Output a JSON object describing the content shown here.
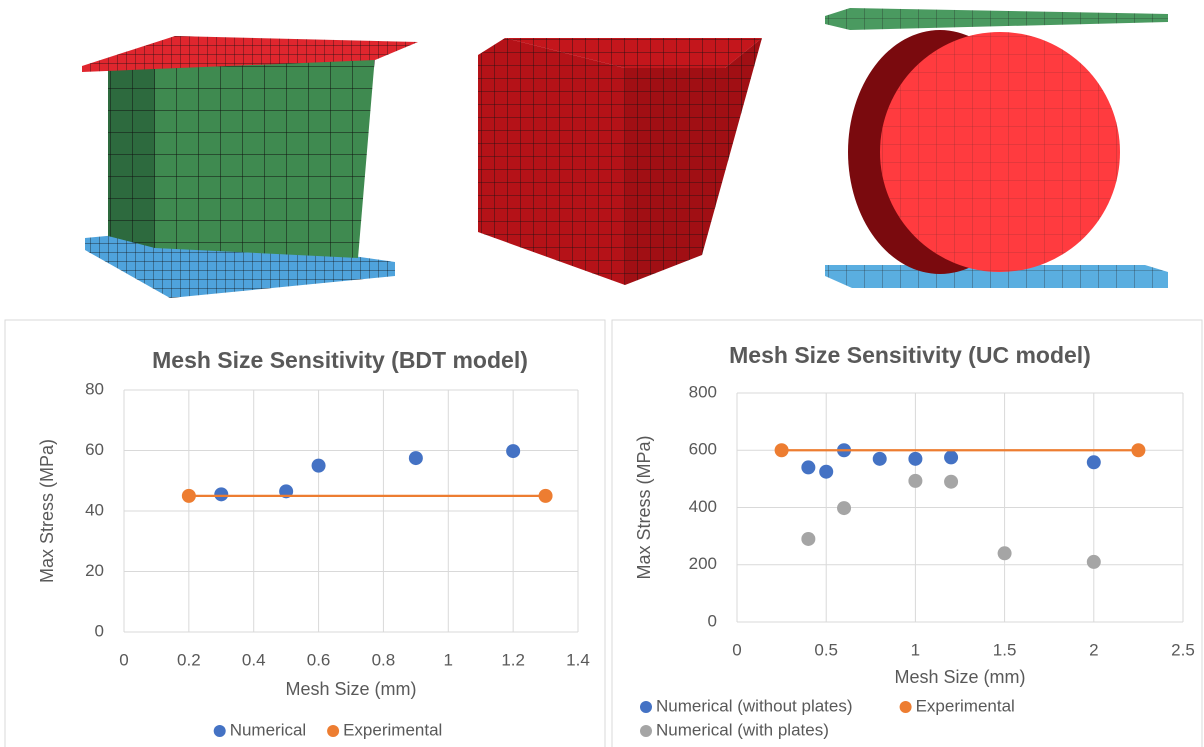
{
  "chart_data": [
    {
      "type": "scatter",
      "title": "Mesh Size Sensitivity (BDT model)",
      "x_label": "Mesh Size (mm)",
      "y_label": "Max Stress (MPa)",
      "xlim": [
        0,
        1.4
      ],
      "xticks": [
        0,
        0.2,
        0.4,
        0.6,
        0.8,
        1,
        1.2,
        1.4
      ],
      "ylim": [
        0,
        80
      ],
      "yticks": [
        0,
        20,
        40,
        60,
        80
      ],
      "grid": true,
      "legend": "bottom",
      "series": [
        {
          "name": "Numerical",
          "color": "#4472c4",
          "style": "markers",
          "x": [
            0.3,
            0.5,
            0.6,
            0.9,
            1.2
          ],
          "values": [
            45.5,
            46.5,
            55,
            57.5,
            59.8
          ]
        },
        {
          "name": "Experimental",
          "color": "#ed7d31",
          "style": "line-markers",
          "x": [
            0.2,
            1.3
          ],
          "values": [
            45,
            45
          ]
        }
      ]
    },
    {
      "type": "scatter",
      "title": "Mesh Size Sensitivity (UC model)",
      "x_label": "Mesh Size (mm)",
      "y_label": "Max Stress (MPa)",
      "xlim": [
        0,
        2.5
      ],
      "xticks": [
        0,
        0.5,
        1,
        1.5,
        2,
        2.5
      ],
      "ylim": [
        0,
        800
      ],
      "yticks": [
        0,
        200,
        400,
        600,
        800
      ],
      "grid": true,
      "legend": "bottom",
      "series": [
        {
          "name": "Numerical (without plates)",
          "color": "#4472c4",
          "style": "markers",
          "x": [
            0.4,
            0.5,
            0.6,
            0.8,
            1,
            1.2,
            2
          ],
          "values": [
            540,
            525,
            600,
            570,
            570,
            575,
            558
          ]
        },
        {
          "name": "Experimental",
          "color": "#ed7d31",
          "style": "line-markers",
          "x": [
            0.25,
            2.25
          ],
          "values": [
            600,
            600
          ]
        },
        {
          "name": "Numerical (with plates)",
          "color": "#a5a5a5",
          "style": "markers",
          "x": [
            0.4,
            0.6,
            1,
            1.2,
            1.5,
            2
          ],
          "values": [
            290,
            398,
            493,
            490,
            240,
            210
          ]
        }
      ]
    }
  ]
}
